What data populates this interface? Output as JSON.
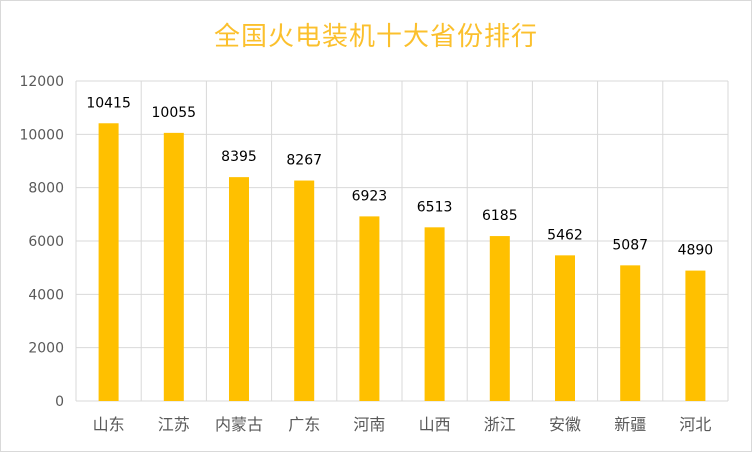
{
  "chart_data": {
    "type": "bar",
    "title": "全国火电装机十大省份排行",
    "categories": [
      "山东",
      "江苏",
      "内蒙古",
      "广东",
      "河南",
      "山西",
      "浙江",
      "安徽",
      "新疆",
      "河北"
    ],
    "values": [
      10415,
      10055,
      8395,
      8267,
      6923,
      6513,
      6185,
      5462,
      5087,
      4890
    ],
    "ylim": [
      0,
      12000
    ],
    "yticks": [
      "0",
      "2000",
      "4000",
      "6000",
      "8000",
      "10000",
      "12000"
    ],
    "xlabel": "",
    "ylabel": "",
    "grid": true,
    "legend": "none",
    "colors": {
      "bar": "#FFC000",
      "title": "#FBC02D",
      "grid": "#D9D9D9",
      "text": "#595959",
      "label": "#000000"
    }
  }
}
